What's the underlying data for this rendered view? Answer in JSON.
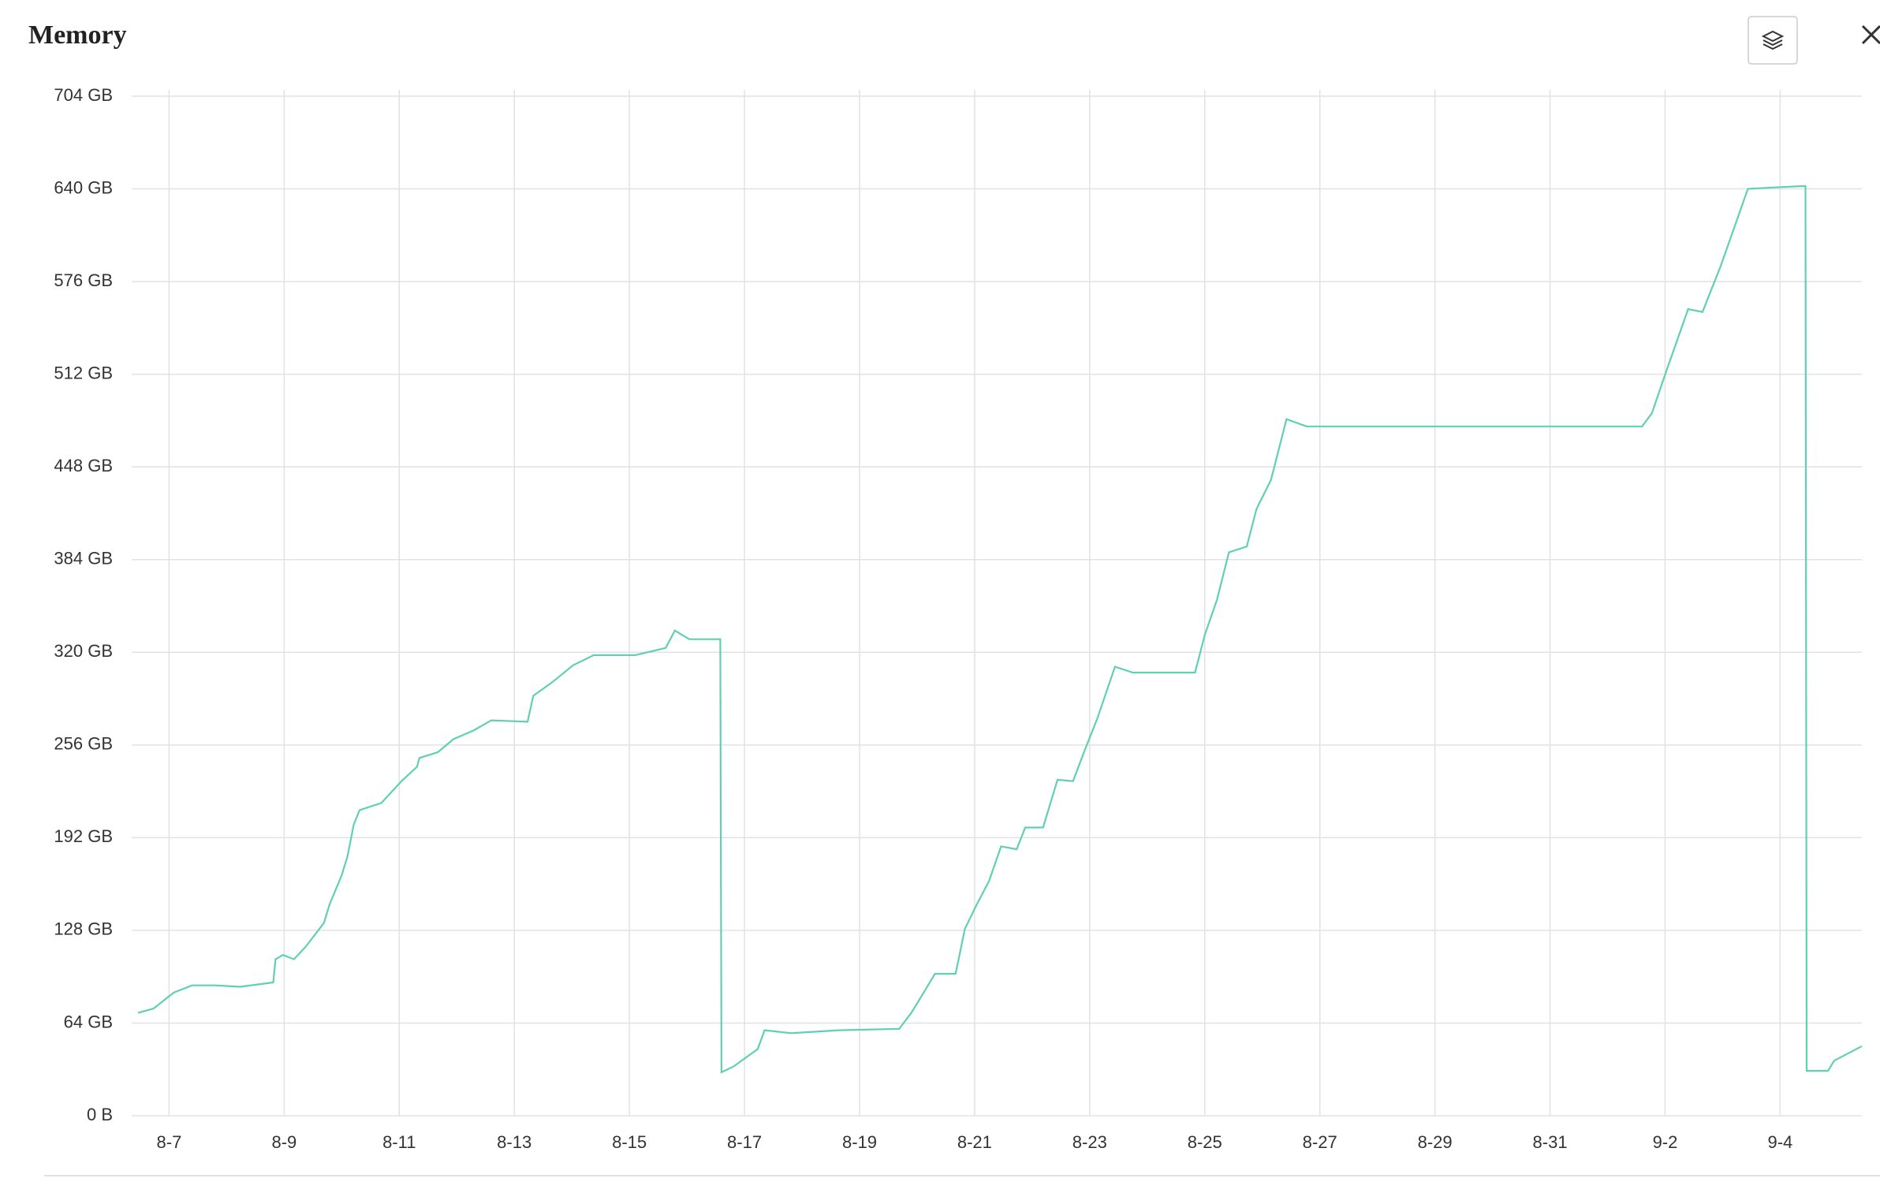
{
  "chart_data": {
    "type": "line",
    "title": "Memory",
    "x": [
      -0.54,
      -0.27,
      0.08,
      0.4,
      0.81,
      1.23,
      1.81,
      1.85,
      1.98,
      2.17,
      2.38,
      2.69,
      2.79,
      3.0,
      3.1,
      3.21,
      3.31,
      3.69,
      4.04,
      4.31,
      4.35,
      4.67,
      4.94,
      5.29,
      5.6,
      6.23,
      6.33,
      6.65,
      7.02,
      7.38,
      8.1,
      8.63,
      8.79,
      9.04,
      9.58,
      9.6,
      9.81,
      10.23,
      10.35,
      10.81,
      11.65,
      12.69,
      12.9,
      13.1,
      13.31,
      13.67,
      13.83,
      14.04,
      14.25,
      14.46,
      14.73,
      14.88,
      15.19,
      15.44,
      15.71,
      15.92,
      16.13,
      16.44,
      16.75,
      17.83,
      18.0,
      18.21,
      18.42,
      18.73,
      18.9,
      19.15,
      19.42,
      19.77,
      22.06,
      25.6,
      25.77,
      26.02,
      26.4,
      26.65,
      26.96,
      27.44,
      27.9,
      28.44,
      28.46,
      28.83,
      28.94,
      29.42
    ],
    "values": [
      71,
      74,
      85,
      90,
      90,
      89,
      92,
      108,
      111,
      108,
      117,
      133,
      146,
      166,
      179,
      201,
      211,
      216,
      231,
      241,
      247,
      251,
      260,
      266,
      273,
      272,
      290,
      299,
      311,
      318,
      318,
      323,
      335,
      329,
      329,
      30,
      34,
      46,
      59,
      57,
      59,
      60,
      71,
      84,
      98,
      98,
      129,
      146,
      162,
      186,
      184,
      199,
      199,
      232,
      231,
      253,
      274,
      310,
      306,
      306,
      332,
      356,
      389,
      393,
      419,
      439,
      481,
      476,
      476,
      476,
      485,
      514,
      557,
      555,
      586,
      640,
      641,
      642,
      31,
      31,
      38,
      48
    ],
    "color": "#5fd0b2",
    "xlim": [
      -0.65,
      29.42
    ],
    "xticks": [
      {
        "value": 0,
        "label": "8-7"
      },
      {
        "value": 2,
        "label": "8-9"
      },
      {
        "value": 4,
        "label": "8-11"
      },
      {
        "value": 6,
        "label": "8-13"
      },
      {
        "value": 8,
        "label": "8-15"
      },
      {
        "value": 10,
        "label": "8-17"
      },
      {
        "value": 12,
        "label": "8-19"
      },
      {
        "value": 14,
        "label": "8-21"
      },
      {
        "value": 16,
        "label": "8-23"
      },
      {
        "value": 18,
        "label": "8-25"
      },
      {
        "value": 20,
        "label": "8-27"
      },
      {
        "value": 22,
        "label": "8-29"
      },
      {
        "value": 24,
        "label": "8-31"
      },
      {
        "value": 26,
        "label": "9-2"
      },
      {
        "value": 28,
        "label": "9-4"
      }
    ],
    "ylim": [
      0,
      704
    ],
    "yticks": [
      {
        "value": 0,
        "label": "0 B"
      },
      {
        "value": 64,
        "label": "64 GB"
      },
      {
        "value": 128,
        "label": "128 GB"
      },
      {
        "value": 192,
        "label": "192 GB"
      },
      {
        "value": 256,
        "label": "256 GB"
      },
      {
        "value": 320,
        "label": "320 GB"
      },
      {
        "value": 384,
        "label": "384 GB"
      },
      {
        "value": 448,
        "label": "448 GB"
      },
      {
        "value": 512,
        "label": "512 GB"
      },
      {
        "value": 576,
        "label": "576 GB"
      },
      {
        "value": 640,
        "label": "640 GB"
      },
      {
        "value": 704,
        "label": "704 GB"
      }
    ],
    "grid": true
  }
}
